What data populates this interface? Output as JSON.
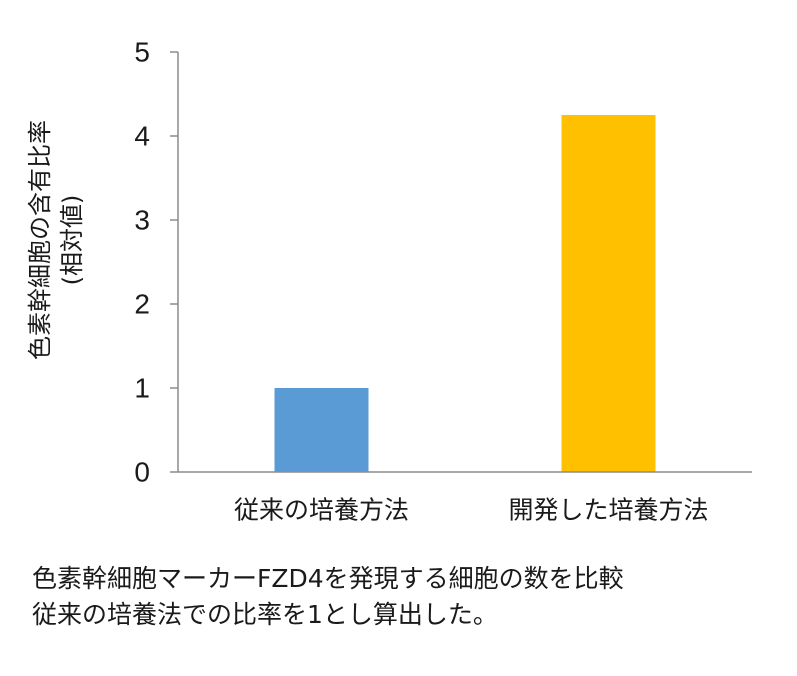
{
  "chart_data": {
    "type": "bar",
    "categories": [
      "従来の培養方法",
      "開発した培養方法"
    ],
    "values": [
      1,
      4.25
    ],
    "colors": [
      "#5b9bd5",
      "#ffc000"
    ],
    "ylabel_lines": [
      "色素幹細胞の含有比率",
      "(相対値)"
    ],
    "ylim": [
      0,
      5
    ],
    "yticks": [
      "0",
      "1",
      "2",
      "3",
      "4",
      "5"
    ],
    "grid": false,
    "legend": "none"
  },
  "caption": {
    "line1": "色素幹細胞マーカーFZD4を発現する細胞の数を比較",
    "line2": "従来の培養法での比率を1とし算出した。"
  }
}
